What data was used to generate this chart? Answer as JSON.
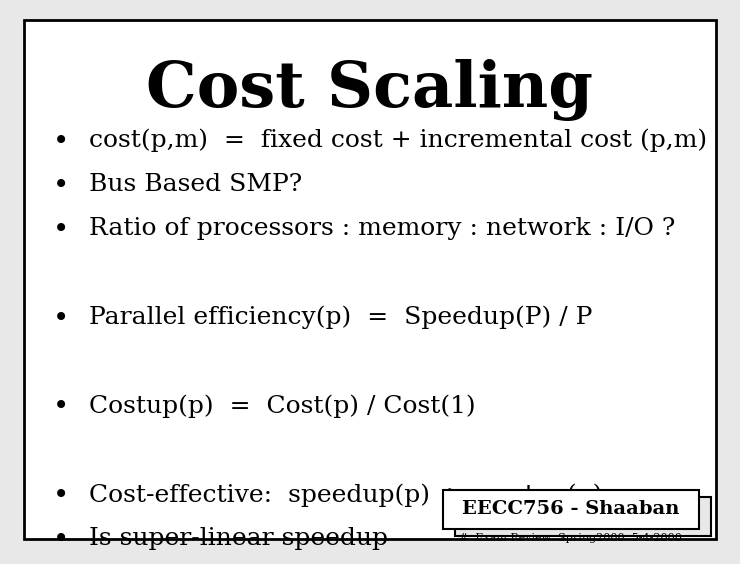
{
  "title": "Cost Scaling",
  "title_fontsize": 46,
  "title_font": "serif",
  "title_weight": "bold",
  "bg_color": "#e8e8e8",
  "slide_bg": "#ffffff",
  "border_color": "#000000",
  "bullet_lines": [
    "cost(p,m)  =  fixed cost + incremental cost (p,m)",
    "Bus Based SMP?",
    "Ratio of processors : memory : network : I/O ?",
    "",
    "Parallel efficiency(p)  =  Speedup(P) / P",
    "",
    "Costup(p)  =  Cost(p) / Cost(1)",
    "",
    "Cost-effective:  speedup(p)  >  costup(p)",
    "Is super-linear speedup"
  ],
  "bullet_fontsize": 18,
  "bullet_font": "serif",
  "footer_main": "EECC756 - Shaaban",
  "footer_sub": "#  Exam Review  Spring2000  5-4-2000",
  "footer_fontsize": 14,
  "footer_sub_fontsize": 8,
  "text_color": "#000000"
}
